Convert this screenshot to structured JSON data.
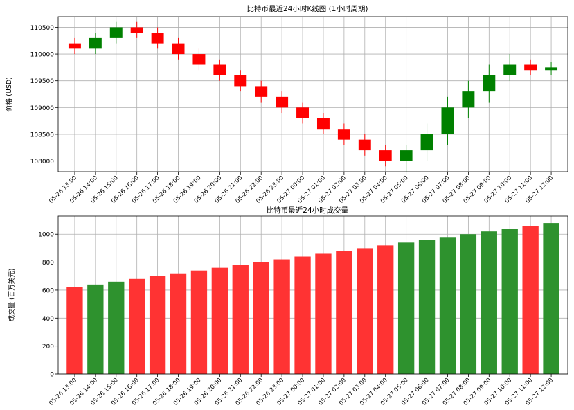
{
  "chart_data": [
    {
      "type": "candlestick",
      "title": "比特币最近24小时K线图 (1小时周期)",
      "xlabel": "",
      "ylabel": "价格 (USD)",
      "ylim": [
        107800,
        110700
      ],
      "yticks": [
        108000,
        108500,
        109000,
        109500,
        110000,
        110500
      ],
      "grid": true,
      "up_color": "#008000",
      "down_color": "#ff0000",
      "categories": [
        "05-26 13:00",
        "05-26 14:00",
        "05-26 15:00",
        "05-26 16:00",
        "05-26 17:00",
        "05-26 18:00",
        "05-26 19:00",
        "05-26 20:00",
        "05-26 21:00",
        "05-26 22:00",
        "05-26 23:00",
        "05-27 00:00",
        "05-27 01:00",
        "05-27 02:00",
        "05-27 03:00",
        "05-27 04:00",
        "05-27 05:00",
        "05-27 06:00",
        "05-27 07:00",
        "05-27 08:00",
        "05-27 09:00",
        "05-27 10:00",
        "05-27 11:00",
        "05-27 12:00"
      ],
      "open": [
        110200,
        110100,
        110300,
        110500,
        110400,
        110200,
        110000,
        109800,
        109600,
        109400,
        109200,
        109000,
        108800,
        108600,
        108400,
        108200,
        108000,
        108200,
        108500,
        109000,
        109300,
        109600,
        109800,
        109700
      ],
      "close": [
        110100,
        110300,
        110500,
        110400,
        110200,
        110000,
        109800,
        109600,
        109400,
        109200,
        109000,
        108800,
        108600,
        108400,
        108200,
        108000,
        108200,
        108500,
        109000,
        109300,
        109600,
        109800,
        109700,
        109750
      ],
      "high": [
        110300,
        110400,
        110600,
        110600,
        110500,
        110300,
        110100,
        109900,
        109700,
        109500,
        109300,
        109100,
        108900,
        108700,
        108500,
        108300,
        108300,
        108700,
        109200,
        109500,
        109800,
        110000,
        109900,
        109850
      ],
      "low": [
        110000,
        110000,
        110200,
        110300,
        110100,
        109900,
        109700,
        109500,
        109300,
        109100,
        108900,
        108700,
        108500,
        108300,
        108100,
        107900,
        107800,
        108000,
        108300,
        108800,
        109100,
        109500,
        109600,
        109600
      ]
    },
    {
      "type": "bar",
      "title": "比特币最近24小时成交量",
      "xlabel": "",
      "ylabel": "成交量 (百万美元)",
      "ylim": [
        0,
        1130
      ],
      "yticks": [
        0,
        200,
        400,
        600,
        800,
        1000
      ],
      "grid": true,
      "categories": [
        "05-26 13:00",
        "05-26 14:00",
        "05-26 15:00",
        "05-26 16:00",
        "05-26 17:00",
        "05-26 18:00",
        "05-26 19:00",
        "05-26 20:00",
        "05-26 21:00",
        "05-26 22:00",
        "05-26 23:00",
        "05-27 00:00",
        "05-27 01:00",
        "05-27 02:00",
        "05-27 03:00",
        "05-27 04:00",
        "05-27 05:00",
        "05-27 06:00",
        "05-27 07:00",
        "05-27 08:00",
        "05-27 09:00",
        "05-27 10:00",
        "05-27 11:00",
        "05-27 12:00"
      ],
      "values": [
        620,
        640,
        660,
        680,
        700,
        720,
        740,
        760,
        780,
        800,
        820,
        840,
        860,
        880,
        900,
        920,
        940,
        960,
        980,
        1000,
        1020,
        1040,
        1060,
        1080
      ],
      "up_color": "#2e922e",
      "down_color": "#ff3333"
    }
  ]
}
